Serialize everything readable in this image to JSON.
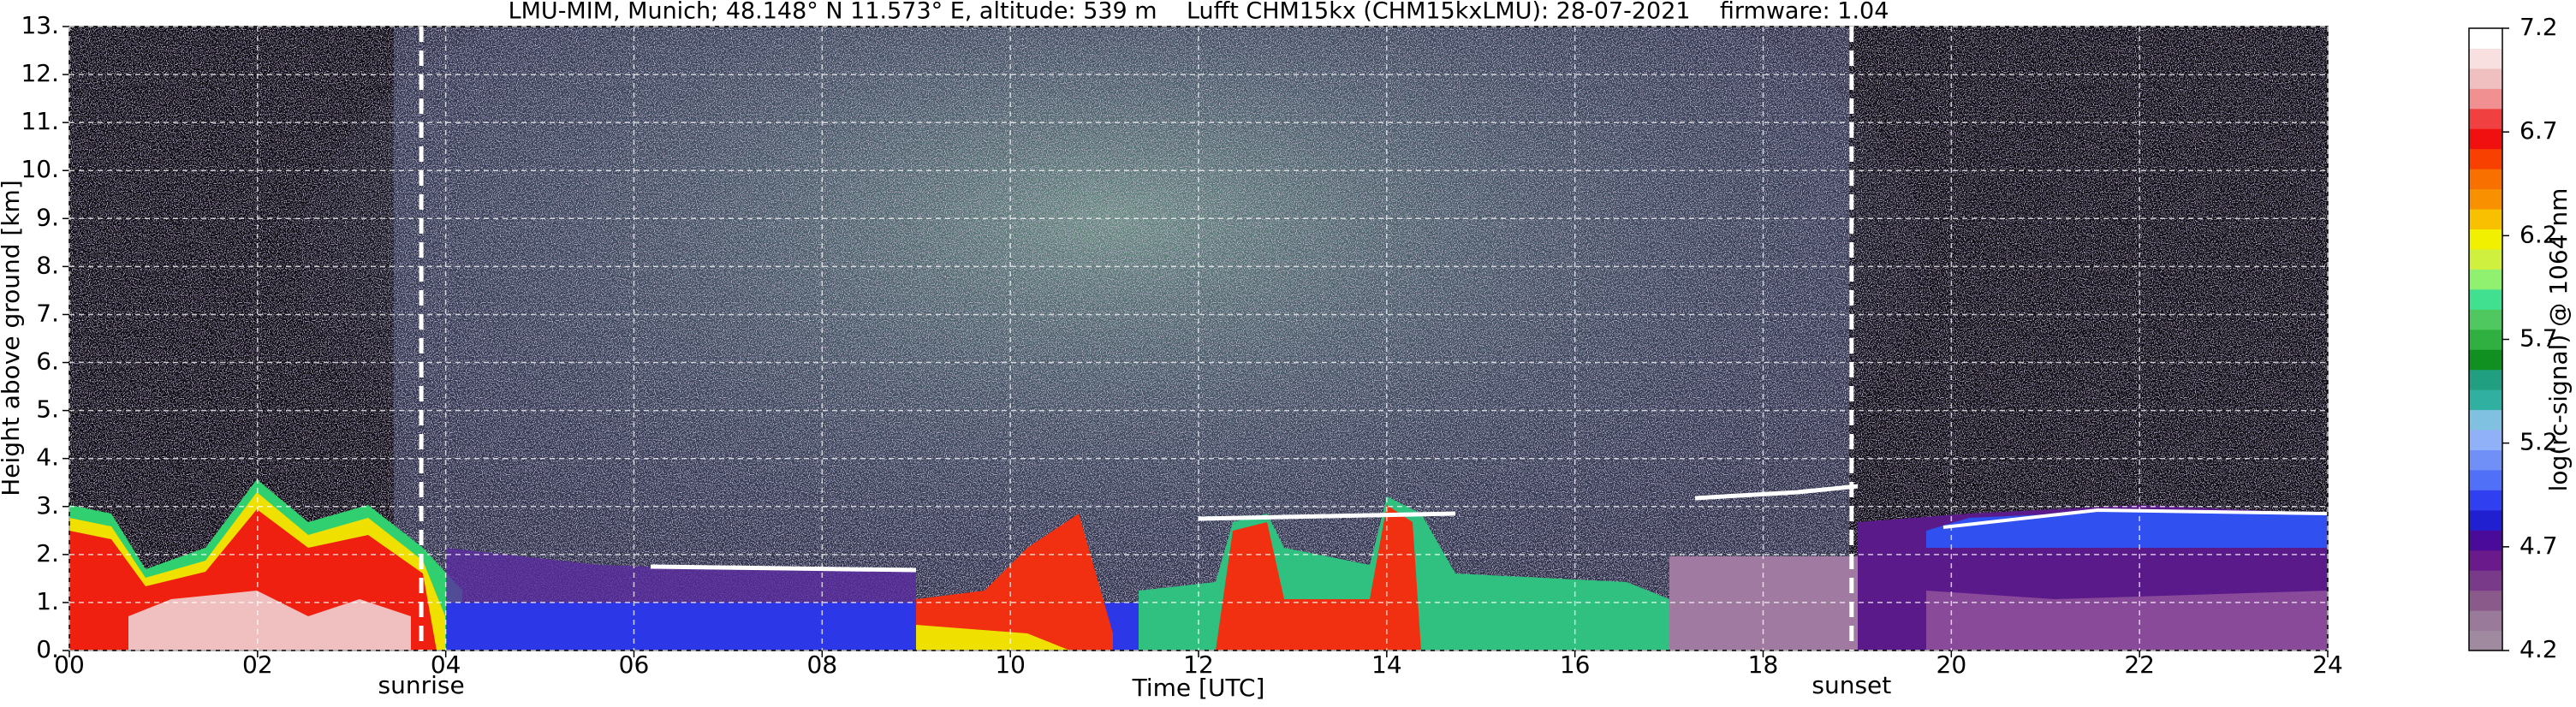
{
  "chart_data": {
    "type": "heatmap",
    "title": "LMU-MIM, Munich; 48.148° N 11.573° E, altitude: 539 m    Lufft CHM15kx (CHM15kxLMU): 28-07-2021    firmware: 1.04",
    "xlabel": "Time [UTC]",
    "ylabel": "Height above ground [km]",
    "xlim": [
      0,
      24
    ],
    "xticks": [
      {
        "value": 0,
        "label": "00"
      },
      {
        "value": 2,
        "label": "02"
      },
      {
        "value": 4,
        "label": "04"
      },
      {
        "value": 6,
        "label": "06"
      },
      {
        "value": 8,
        "label": "08"
      },
      10,
      12,
      14,
      16,
      18,
      20,
      22,
      24
    ],
    "ylim": [
      0,
      13
    ],
    "yticks": [
      {
        "value": 0,
        "label": "0."
      },
      {
        "value": 1,
        "label": "1."
      },
      {
        "value": 2,
        "label": "2."
      },
      {
        "value": 3,
        "label": "3."
      },
      {
        "value": 4,
        "label": "4."
      },
      {
        "value": 5,
        "label": "5."
      },
      {
        "value": 6,
        "label": "6."
      },
      {
        "value": 7,
        "label": "7."
      },
      {
        "value": 8,
        "label": "8."
      },
      {
        "value": 9,
        "label": "9."
      },
      {
        "value": 10,
        "label": "10."
      },
      {
        "value": 11,
        "label": "11."
      },
      {
        "value": 12,
        "label": "12."
      },
      {
        "value": 13,
        "label": "13."
      }
    ],
    "grid": true,
    "annotations": [
      {
        "text": "sunrise",
        "x": 3.74
      },
      {
        "text": "sunset",
        "x": 18.94
      }
    ],
    "colorbar": {
      "label": "log(rc-signal) @ 1064 nm",
      "lim": [
        4.2,
        7.2
      ],
      "ticks": [
        4.2,
        4.7,
        5.2,
        5.7,
        6.2,
        6.7,
        7.2
      ],
      "colors": [
        "#a08aa0",
        "#9a7a9a",
        "#8a5a8a",
        "#7a3a8a",
        "#6a1a8a",
        "#4a0a9a",
        "#2020d0",
        "#3040f0",
        "#5070f8",
        "#7090f8",
        "#90b0f8",
        "#80c0e0",
        "#30b0a0",
        "#20a080",
        "#109020",
        "#30b040",
        "#50c860",
        "#40e090",
        "#90f070",
        "#d0f040",
        "#f0f000",
        "#f8c000",
        "#f89000",
        "#f87000",
        "#f84000",
        "#f01010",
        "#f04040",
        "#f09090",
        "#f0c0c0",
        "#f8e0e0",
        "#ffffff"
      ]
    }
  }
}
